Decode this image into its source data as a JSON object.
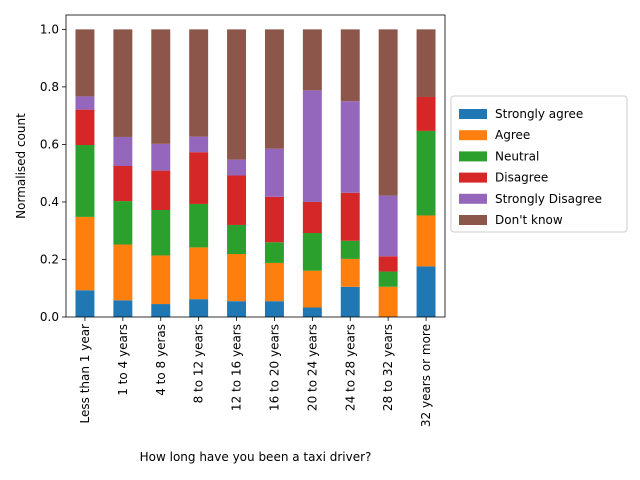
{
  "chart_data": {
    "type": "bar",
    "stacked": true,
    "title": "",
    "xlabel": "How long have you been a taxi driver?",
    "ylabel": "Normalised count",
    "ylim": [
      0,
      1.05
    ],
    "yticks": [
      "0.0",
      "0.2",
      "0.4",
      "0.6",
      "0.8",
      "1.0"
    ],
    "categories": [
      "Less than 1 year",
      "1 to 4 years",
      "4 to 8 yeras",
      "8 to 12 years",
      "12 to 16 years",
      "16 to 20 years",
      "20 to 24 years",
      "24 to 28 years",
      "28 to 32 years",
      "32 years or more"
    ],
    "legend_position": "center-right, outside plot",
    "series": [
      {
        "name": "Strongly agree",
        "color": "#1f77b4",
        "values": [
          0.093,
          0.058,
          0.045,
          0.062,
          0.055,
          0.055,
          0.033,
          0.105,
          0.0,
          0.176
        ]
      },
      {
        "name": "Agree",
        "color": "#ff7f0e",
        "values": [
          0.255,
          0.194,
          0.169,
          0.18,
          0.164,
          0.133,
          0.128,
          0.097,
          0.105,
          0.177
        ]
      },
      {
        "name": "Neutral",
        "color": "#2ca02c",
        "values": [
          0.25,
          0.151,
          0.158,
          0.151,
          0.101,
          0.072,
          0.131,
          0.063,
          0.053,
          0.294
        ]
      },
      {
        "name": "Disagree",
        "color": "#d62728",
        "values": [
          0.123,
          0.122,
          0.137,
          0.18,
          0.172,
          0.158,
          0.108,
          0.167,
          0.053,
          0.118
        ]
      },
      {
        "name": "Strongly Disagree",
        "color": "#9467bd",
        "values": [
          0.046,
          0.101,
          0.093,
          0.054,
          0.055,
          0.167,
          0.388,
          0.318,
          0.211,
          0.0
        ]
      },
      {
        "name": "Don't know",
        "color": "#8c564b",
        "values": [
          0.233,
          0.374,
          0.398,
          0.373,
          0.453,
          0.415,
          0.212,
          0.25,
          0.578,
          0.235
        ]
      }
    ]
  }
}
